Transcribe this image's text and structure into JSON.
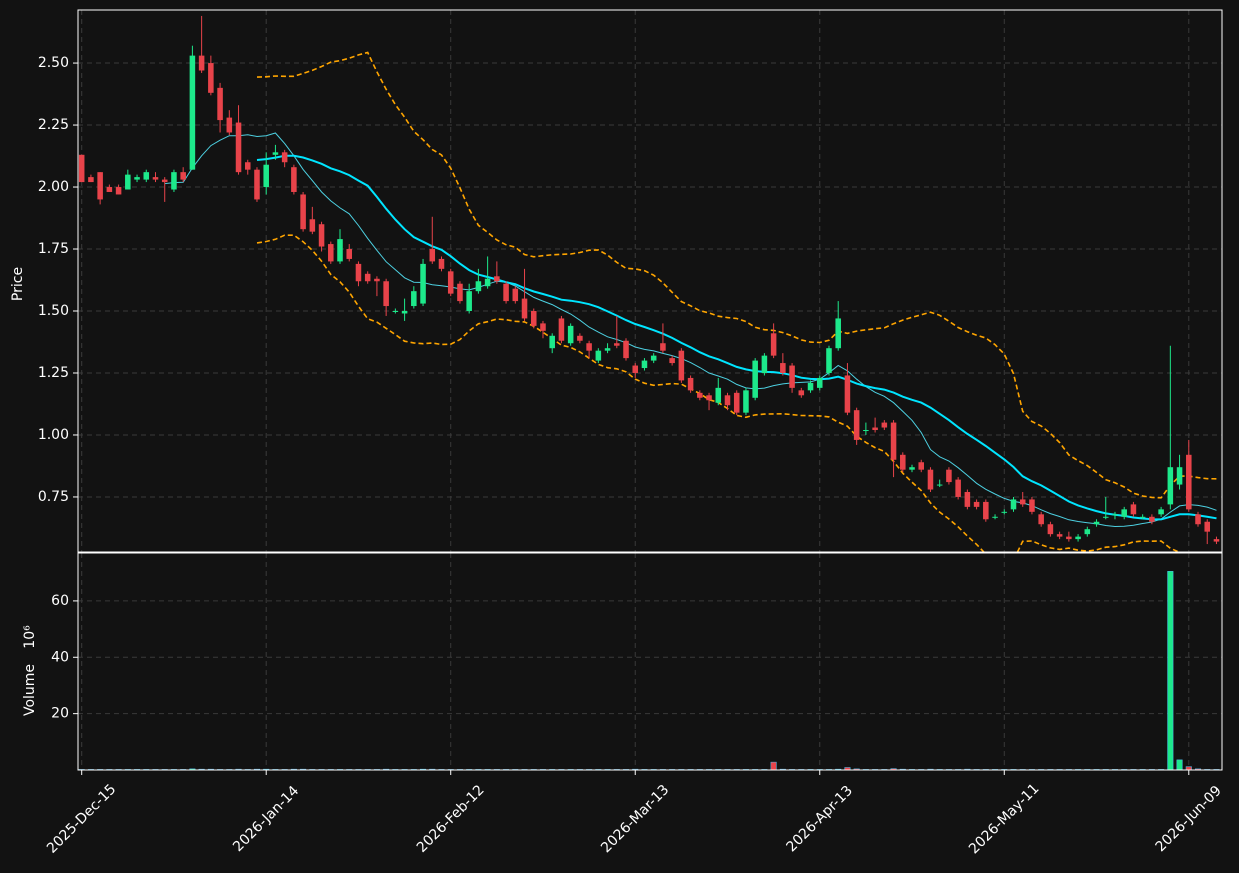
{
  "chart_data": {
    "type": "candlestick",
    "open": [
      2.13,
      2.04,
      2.06,
      2.0,
      2.0,
      1.99,
      2.03,
      2.03,
      2.04,
      2.03,
      1.99,
      2.06,
      2.07,
      2.53,
      2.5,
      2.4,
      2.28,
      2.26,
      2.1,
      2.07,
      2.0,
      2.13,
      2.14,
      2.08,
      1.97,
      1.87,
      1.85,
      1.77,
      1.7,
      1.75,
      1.69,
      1.65,
      1.63,
      1.62,
      1.5,
      1.49,
      1.52,
      1.53,
      1.75,
      1.71,
      1.66,
      1.61,
      1.5,
      1.58,
      1.6,
      1.64,
      1.61,
      1.59,
      1.55,
      1.5,
      1.45,
      1.35,
      1.47,
      1.37,
      1.4,
      1.37,
      1.3,
      1.34,
      1.37,
      1.38,
      1.28,
      1.27,
      1.3,
      1.37,
      1.31,
      1.34,
      1.23,
      1.17,
      1.16,
      1.13,
      1.16,
      1.17,
      1.09,
      1.15,
      1.25,
      1.41,
      1.29,
      1.28,
      1.18,
      1.18,
      1.19,
      1.25,
      1.35,
      1.24,
      1.1,
      1.02,
      1.03,
      1.05,
      1.05,
      0.92,
      0.86,
      0.89,
      0.86,
      0.8,
      0.86,
      0.82,
      0.77,
      0.73,
      0.73,
      0.67,
      0.69,
      0.7,
      0.74,
      0.74,
      0.68,
      0.64,
      0.6,
      0.59,
      0.58,
      0.6,
      0.64,
      0.67,
      0.68,
      0.67,
      0.72,
      0.67,
      0.67,
      0.68,
      0.72,
      0.8,
      0.92,
      0.68,
      0.65,
      0.58
    ],
    "high": [
      2.13,
      2.05,
      2.06,
      2.01,
      2.01,
      2.07,
      2.05,
      2.07,
      2.06,
      2.04,
      2.07,
      2.08,
      2.57,
      2.69,
      2.53,
      2.42,
      2.31,
      2.33,
      2.11,
      2.08,
      2.14,
      2.17,
      2.15,
      2.09,
      1.98,
      1.92,
      1.86,
      1.78,
      1.83,
      1.77,
      1.7,
      1.66,
      1.64,
      1.63,
      1.51,
      1.55,
      1.6,
      1.71,
      1.88,
      1.72,
      1.67,
      1.62,
      1.61,
      1.67,
      1.72,
      1.7,
      1.62,
      1.6,
      1.67,
      1.51,
      1.46,
      1.41,
      1.48,
      1.45,
      1.41,
      1.38,
      1.35,
      1.37,
      1.48,
      1.39,
      1.29,
      1.31,
      1.33,
      1.45,
      1.32,
      1.35,
      1.24,
      1.18,
      1.17,
      1.23,
      1.17,
      1.18,
      1.19,
      1.31,
      1.33,
      1.45,
      1.33,
      1.29,
      1.19,
      1.22,
      1.24,
      1.36,
      1.54,
      1.29,
      1.11,
      1.05,
      1.07,
      1.06,
      1.06,
      0.93,
      0.88,
      0.9,
      0.87,
      0.82,
      0.87,
      0.83,
      0.78,
      0.74,
      0.74,
      0.68,
      0.7,
      0.75,
      0.77,
      0.75,
      0.69,
      0.65,
      0.61,
      0.61,
      0.6,
      0.63,
      0.66,
      0.75,
      0.69,
      0.71,
      0.73,
      0.68,
      0.68,
      0.71,
      1.36,
      0.92,
      0.98,
      0.69,
      0.66,
      0.59
    ],
    "low": [
      2.02,
      2.02,
      1.93,
      1.98,
      1.97,
      1.99,
      2.02,
      2.02,
      2.02,
      1.94,
      1.98,
      2.02,
      2.07,
      2.46,
      2.37,
      2.22,
      2.21,
      2.05,
      2.05,
      1.94,
      1.97,
      2.11,
      2.08,
      1.97,
      1.82,
      1.81,
      1.74,
      1.69,
      1.69,
      1.7,
      1.6,
      1.61,
      1.56,
      1.48,
      1.49,
      1.46,
      1.51,
      1.52,
      1.69,
      1.66,
      1.56,
      1.53,
      1.49,
      1.57,
      1.59,
      1.61,
      1.53,
      1.53,
      1.46,
      1.43,
      1.39,
      1.33,
      1.37,
      1.36,
      1.37,
      1.31,
      1.29,
      1.33,
      1.35,
      1.3,
      1.23,
      1.26,
      1.29,
      1.33,
      1.28,
      1.21,
      1.17,
      1.14,
      1.1,
      1.12,
      1.1,
      1.08,
      1.08,
      1.14,
      1.24,
      1.31,
      1.24,
      1.17,
      1.15,
      1.17,
      1.18,
      1.24,
      1.34,
      1.08,
      0.96,
      1.0,
      1.01,
      1.02,
      0.83,
      0.85,
      0.85,
      0.85,
      0.77,
      0.79,
      0.8,
      0.74,
      0.7,
      0.7,
      0.65,
      0.66,
      0.68,
      0.69,
      0.71,
      0.68,
      0.63,
      0.59,
      0.58,
      0.57,
      0.57,
      0.59,
      0.63,
      0.66,
      0.66,
      0.66,
      0.67,
      0.66,
      0.64,
      0.67,
      0.7,
      0.78,
      0.69,
      0.63,
      0.56,
      0.56
    ],
    "close": [
      2.02,
      2.02,
      1.95,
      1.98,
      1.97,
      2.05,
      2.04,
      2.06,
      2.03,
      2.02,
      2.06,
      2.03,
      2.53,
      2.47,
      2.38,
      2.27,
      2.22,
      2.06,
      2.07,
      1.95,
      2.09,
      2.14,
      2.1,
      1.98,
      1.83,
      1.82,
      1.76,
      1.7,
      1.79,
      1.71,
      1.62,
      1.62,
      1.62,
      1.52,
      1.5,
      1.5,
      1.58,
      1.69,
      1.7,
      1.67,
      1.57,
      1.54,
      1.58,
      1.62,
      1.63,
      1.62,
      1.54,
      1.54,
      1.47,
      1.44,
      1.42,
      1.4,
      1.38,
      1.44,
      1.38,
      1.34,
      1.34,
      1.35,
      1.36,
      1.31,
      1.25,
      1.3,
      1.32,
      1.34,
      1.29,
      1.22,
      1.18,
      1.15,
      1.14,
      1.19,
      1.12,
      1.09,
      1.18,
      1.3,
      1.32,
      1.32,
      1.25,
      1.19,
      1.16,
      1.21,
      1.23,
      1.35,
      1.47,
      1.09,
      0.98,
      1.02,
      1.02,
      1.03,
      0.9,
      0.86,
      0.87,
      0.86,
      0.78,
      0.8,
      0.81,
      0.75,
      0.71,
      0.71,
      0.66,
      0.67,
      0.69,
      0.74,
      0.72,
      0.69,
      0.64,
      0.6,
      0.59,
      0.58,
      0.59,
      0.62,
      0.65,
      0.67,
      0.68,
      0.7,
      0.68,
      0.67,
      0.65,
      0.7,
      0.87,
      0.87,
      0.7,
      0.64,
      0.61,
      0.57
    ],
    "volume": [
      0.2,
      0.2,
      0.2,
      0.2,
      0.2,
      0.2,
      0.2,
      0.2,
      0.2,
      0.2,
      0.2,
      0.2,
      0.4,
      0.3,
      0.3,
      0.2,
      0.2,
      0.3,
      0.2,
      0.3,
      0.3,
      0.2,
      0.2,
      0.3,
      0.3,
      0.2,
      0.2,
      0.2,
      0.2,
      0.2,
      0.2,
      0.2,
      0.2,
      0.3,
      0.2,
      0.2,
      0.2,
      0.3,
      0.3,
      0.2,
      0.2,
      0.2,
      0.2,
      0.2,
      0.2,
      0.2,
      0.2,
      0.2,
      0.2,
      0.2,
      0.2,
      0.2,
      0.2,
      0.2,
      0.2,
      0.2,
      0.2,
      0.2,
      0.2,
      0.2,
      0.3,
      0.2,
      0.2,
      0.2,
      0.2,
      0.2,
      0.2,
      0.2,
      0.2,
      0.2,
      0.2,
      0.2,
      0.2,
      0.2,
      0.2,
      2.8,
      0.3,
      0.2,
      0.2,
      0.2,
      0.2,
      0.2,
      0.3,
      0.9,
      0.4,
      0.2,
      0.2,
      0.2,
      0.5,
      0.3,
      0.2,
      0.2,
      0.3,
      0.2,
      0.2,
      0.2,
      0.3,
      0.2,
      0.2,
      0.2,
      0.2,
      0.2,
      0.2,
      0.2,
      0.2,
      0.2,
      0.2,
      0.2,
      0.2,
      0.2,
      0.2,
      0.2,
      0.2,
      0.2,
      0.2,
      0.2,
      0.2,
      0.2,
      70.5,
      3.6,
      1.2,
      0.4,
      0.2,
      0.2
    ],
    "up_color": "#1de98b",
    "down_color": "#e8434a",
    "xlim": [
      -0.4,
      123.6
    ],
    "xticks": [
      {
        "value": 0,
        "label": "2025-Dec-15"
      },
      {
        "value": 20,
        "label": "2026-Jan-14"
      },
      {
        "value": 40,
        "label": "2026-Feb-12"
      },
      {
        "value": 60,
        "label": "2026-Mar-13"
      },
      {
        "value": 80,
        "label": "2026-Apr-13"
      },
      {
        "value": 100,
        "label": "2026-May-11"
      },
      {
        "value": 120,
        "label": "2026-Jun-09"
      }
    ],
    "ylabel": "Price",
    "ylim": [
      0.528,
      2.714
    ],
    "yticks": [
      0.75,
      {
        "value": 1.0,
        "label": "1.00"
      },
      1.25,
      {
        "value": 1.5,
        "label": "1.50"
      },
      1.75,
      {
        "value": 2.0,
        "label": "2.00"
      },
      2.25,
      {
        "value": 2.5,
        "label": "2.50"
      }
    ],
    "volume_label": "Volume",
    "volume_multiplier": "10⁶",
    "volume_ylim": [
      0,
      77
    ],
    "volume_yticks": [
      20,
      40,
      60
    ],
    "grid": true
  }
}
